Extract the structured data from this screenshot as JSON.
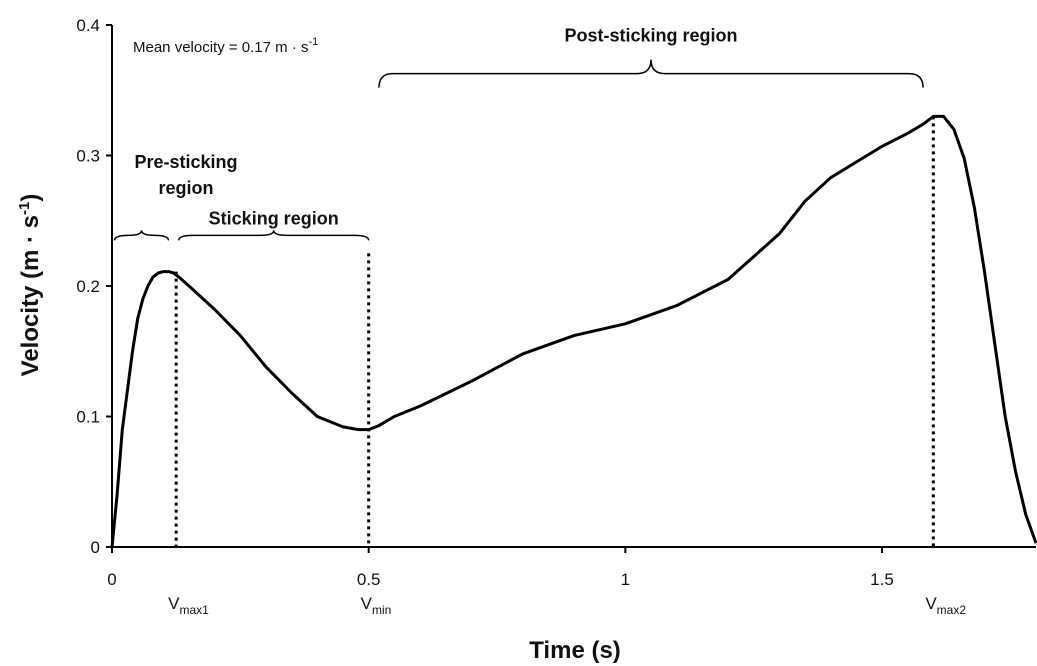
{
  "chart_data": {
    "type": "line",
    "xlabel": "Time (s)",
    "ylabel_parts": [
      "Velocity (m · s",
      "-1",
      ")"
    ],
    "annotation_parts": [
      "Mean velocity = 0.17 m · s",
      "-1"
    ],
    "xlim": [
      0,
      1.8
    ],
    "ylim": [
      0,
      0.4
    ],
    "x_ticks": [
      0,
      0.5,
      1,
      1.5
    ],
    "x_tick_labels": [
      "0",
      "0.5",
      "1",
      "1.5"
    ],
    "y_ticks": [
      0,
      0.1,
      0.2,
      0.3,
      0.4
    ],
    "y_tick_labels": [
      "0",
      "0.1",
      "0.2",
      "0.3",
      "0.4"
    ],
    "grid": false,
    "series": [
      {
        "x": [
          0,
          0.01,
          0.02,
          0.03,
          0.04,
          0.05,
          0.06,
          0.07,
          0.08,
          0.09,
          0.1,
          0.11,
          0.12,
          0.13,
          0.15,
          0.2,
          0.25,
          0.3,
          0.35,
          0.4,
          0.45,
          0.48,
          0.5,
          0.52,
          0.55,
          0.6,
          0.7,
          0.8,
          0.9,
          1.0,
          1.1,
          1.2,
          1.3,
          1.35,
          1.4,
          1.45,
          1.5,
          1.55,
          1.58,
          1.6,
          1.62,
          1.64,
          1.66,
          1.68,
          1.7,
          1.72,
          1.74,
          1.76,
          1.78,
          1.8
        ],
        "y": [
          0,
          0.04,
          0.09,
          0.12,
          0.15,
          0.175,
          0.19,
          0.2,
          0.207,
          0.21,
          0.211,
          0.211,
          0.21,
          0.207,
          0.2,
          0.182,
          0.162,
          0.138,
          0.118,
          0.1,
          0.092,
          0.09,
          0.09,
          0.093,
          0.1,
          0.108,
          0.127,
          0.148,
          0.162,
          0.171,
          0.185,
          0.205,
          0.24,
          0.265,
          0.283,
          0.295,
          0.307,
          0.317,
          0.324,
          0.33,
          0.33,
          0.32,
          0.298,
          0.26,
          0.21,
          0.155,
          0.1,
          0.058,
          0.025,
          0.003
        ]
      }
    ],
    "vlines": [
      {
        "x": 0.125,
        "y": 0.211,
        "label": "V",
        "sub": "max1"
      },
      {
        "x": 0.5,
        "y": 0.225,
        "label": "V",
        "sub": "min"
      },
      {
        "x": 1.6,
        "y": 0.33,
        "label": "V",
        "sub": "max2"
      }
    ],
    "regions": [
      {
        "label_lines": [
          "Pre-sticking",
          "region"
        ],
        "x_start": 0.005,
        "x_end": 0.11,
        "y": 0.235
      },
      {
        "label_lines": [
          "Sticking region"
        ],
        "x_start": 0.13,
        "x_end": 0.5,
        "y": 0.235
      },
      {
        "label_lines": [
          "Post-sticking region"
        ],
        "x_start": 0.52,
        "x_end": 1.58,
        "y": 0.352
      }
    ]
  }
}
